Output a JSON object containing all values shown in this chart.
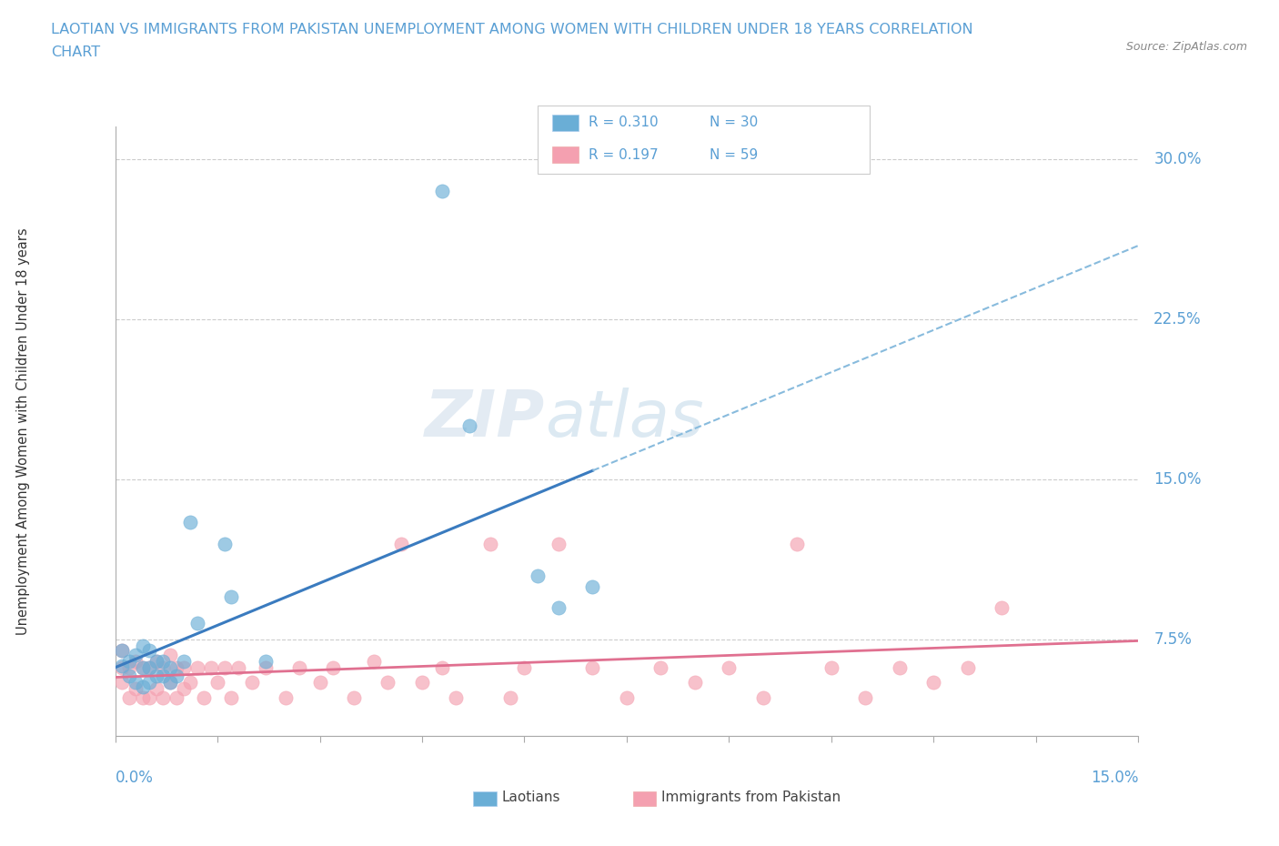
{
  "title_line1": "LAOTIAN VS IMMIGRANTS FROM PAKISTAN UNEMPLOYMENT AMONG WOMEN WITH CHILDREN UNDER 18 YEARS CORRELATION",
  "title_line2": "CHART",
  "source": "Source: ZipAtlas.com",
  "ylabel": "Unemployment Among Women with Children Under 18 years",
  "ytick_labels": [
    "7.5%",
    "15.0%",
    "22.5%",
    "30.0%"
  ],
  "ytick_values": [
    0.075,
    0.15,
    0.225,
    0.3
  ],
  "xlim": [
    0.0,
    0.15
  ],
  "ylim": [
    0.03,
    0.315
  ],
  "legend_r1": "R = 0.310",
  "legend_n1": "N = 30",
  "legend_r2": "R = 0.197",
  "legend_n2": "N = 59",
  "color_laotian": "#6aaed6",
  "color_pakistan": "#f4a0b0",
  "color_trend_laotian": "#3a7bbf",
  "color_trend_pakistan": "#e07090",
  "title_color": "#5a9fd4",
  "tick_color": "#5a9fd4",
  "watermark_zip": "ZIP",
  "watermark_atlas": "atlas",
  "laotian_x": [
    0.001,
    0.001,
    0.002,
    0.002,
    0.003,
    0.003,
    0.004,
    0.004,
    0.004,
    0.005,
    0.005,
    0.005,
    0.006,
    0.006,
    0.007,
    0.007,
    0.008,
    0.008,
    0.009,
    0.01,
    0.011,
    0.012,
    0.016,
    0.017,
    0.022,
    0.048,
    0.052,
    0.062,
    0.065,
    0.07
  ],
  "laotian_y": [
    0.063,
    0.07,
    0.058,
    0.065,
    0.055,
    0.068,
    0.053,
    0.062,
    0.072,
    0.055,
    0.062,
    0.07,
    0.058,
    0.065,
    0.058,
    0.065,
    0.055,
    0.062,
    0.058,
    0.065,
    0.13,
    0.083,
    0.12,
    0.095,
    0.065,
    0.285,
    0.175,
    0.105,
    0.09,
    0.1
  ],
  "pakistan_x": [
    0.001,
    0.001,
    0.001,
    0.002,
    0.002,
    0.003,
    0.003,
    0.004,
    0.004,
    0.005,
    0.005,
    0.006,
    0.006,
    0.007,
    0.007,
    0.008,
    0.008,
    0.009,
    0.009,
    0.01,
    0.01,
    0.011,
    0.012,
    0.013,
    0.014,
    0.015,
    0.016,
    0.017,
    0.018,
    0.02,
    0.022,
    0.025,
    0.027,
    0.03,
    0.032,
    0.035,
    0.038,
    0.04,
    0.042,
    0.045,
    0.048,
    0.05,
    0.055,
    0.058,
    0.06,
    0.065,
    0.07,
    0.075,
    0.08,
    0.085,
    0.09,
    0.095,
    0.1,
    0.105,
    0.11,
    0.115,
    0.12,
    0.125,
    0.13
  ],
  "pakistan_y": [
    0.055,
    0.062,
    0.07,
    0.048,
    0.062,
    0.052,
    0.065,
    0.048,
    0.062,
    0.048,
    0.062,
    0.052,
    0.065,
    0.048,
    0.062,
    0.055,
    0.068,
    0.048,
    0.062,
    0.052,
    0.062,
    0.055,
    0.062,
    0.048,
    0.062,
    0.055,
    0.062,
    0.048,
    0.062,
    0.055,
    0.062,
    0.048,
    0.062,
    0.055,
    0.062,
    0.048,
    0.065,
    0.055,
    0.12,
    0.055,
    0.062,
    0.048,
    0.12,
    0.048,
    0.062,
    0.12,
    0.062,
    0.048,
    0.062,
    0.055,
    0.062,
    0.048,
    0.12,
    0.062,
    0.048,
    0.062,
    0.055,
    0.062,
    0.09
  ]
}
